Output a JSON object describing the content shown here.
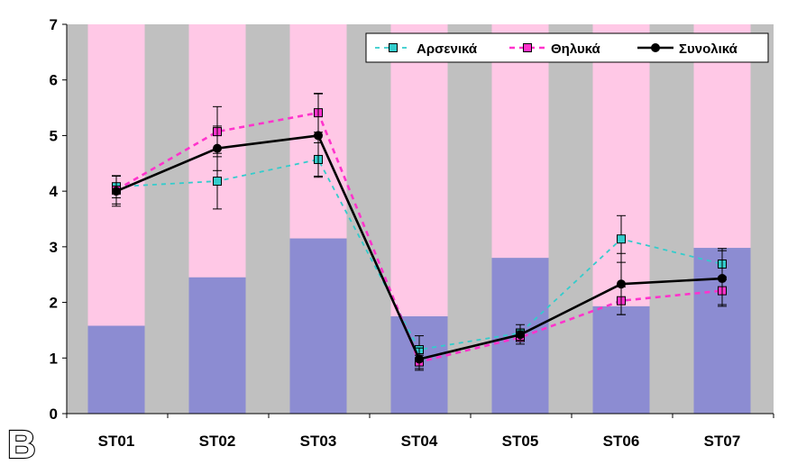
{
  "panel_label": "B",
  "colors": {
    "plot_background": "#c0c0c0",
    "bar_upper": "#ffc8e6",
    "bar_lower": "#8c8cd2",
    "arsenika": "#33cccc",
    "thilyka": "#ff33cc",
    "synolika": "#000000"
  },
  "chart_data": {
    "type": "bar+line",
    "title": "",
    "xlabel": "",
    "ylabel": "",
    "ylim": [
      0,
      7
    ],
    "yticks": [
      0,
      1,
      2,
      3,
      4,
      5,
      6,
      7
    ],
    "grid": false,
    "legend_position": "top-right",
    "categories": [
      "ST01",
      "ST02",
      "ST03",
      "ST04",
      "ST05",
      "ST06",
      "ST07"
    ],
    "bars": {
      "lower_values": [
        1.58,
        2.45,
        3.15,
        1.75,
        2.8,
        1.93,
        2.98
      ],
      "total_values": [
        7,
        7,
        7,
        7,
        7,
        7,
        7
      ]
    },
    "series": [
      {
        "name": "Αρσενικά",
        "marker": "square",
        "line": "dashed",
        "values": [
          4.08,
          4.18,
          4.57,
          1.15,
          1.45,
          3.14,
          2.69
        ],
        "errors": [
          0.2,
          0.5,
          0.3,
          0.25,
          0.15,
          0.42,
          0.28
        ]
      },
      {
        "name": "Θηλυκά",
        "marker": "square",
        "line": "dashed",
        "values": [
          4.02,
          5.07,
          5.41,
          0.93,
          1.37,
          2.03,
          2.21
        ],
        "errors": [
          0.25,
          0.45,
          0.35,
          0.12,
          0.12,
          0.25,
          0.25
        ]
      },
      {
        "name": "Συνολικά",
        "marker": "circle",
        "line": "solid",
        "values": [
          4.0,
          4.77,
          5.0,
          0.98,
          1.42,
          2.33,
          2.43
        ],
        "errors": [
          0.27,
          0.4,
          0.75,
          0.2,
          0.1,
          0.55,
          0.5
        ]
      }
    ]
  }
}
